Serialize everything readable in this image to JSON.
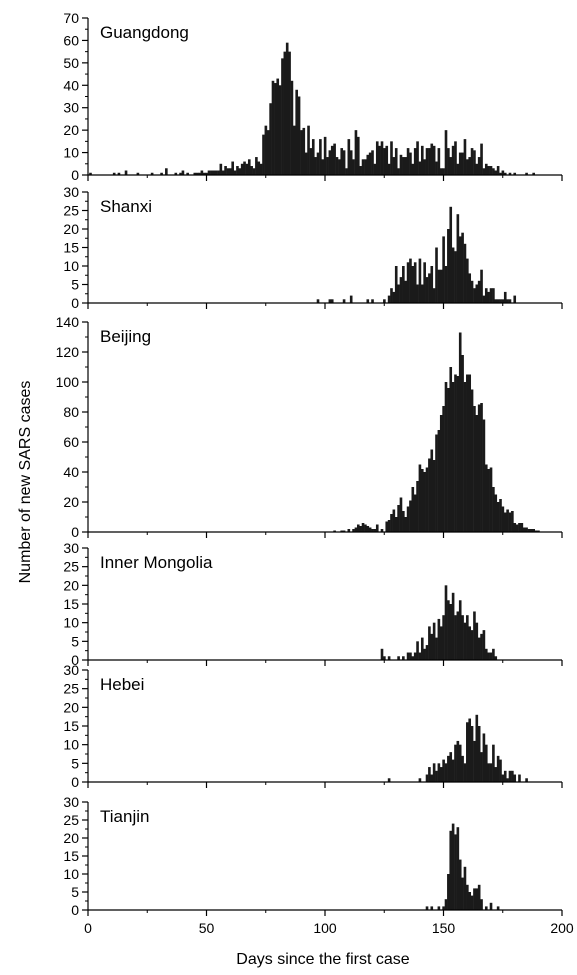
{
  "chart_data": {
    "type": "bar",
    "xlabel": "Days since the first case",
    "ylabel": "Number of new SARS cases",
    "xlim": [
      0,
      200
    ],
    "xticks": [
      0,
      50,
      100,
      150,
      200
    ],
    "bar_color": "#1a1a1a",
    "panels": [
      {
        "name": "Guangdong",
        "ylim": [
          0,
          70
        ],
        "yticks": [
          0,
          10,
          20,
          30,
          40,
          50,
          60,
          70
        ],
        "x": [
          1,
          11,
          13,
          16,
          21,
          27,
          31,
          33,
          37,
          39,
          40,
          42,
          45,
          46,
          47,
          48,
          49,
          50,
          51,
          52,
          53,
          54,
          55,
          56,
          57,
          58,
          59,
          60,
          61,
          62,
          63,
          64,
          65,
          66,
          67,
          68,
          69,
          70,
          71,
          72,
          73,
          74,
          75,
          76,
          77,
          78,
          79,
          80,
          81,
          82,
          83,
          84,
          85,
          86,
          87,
          88,
          89,
          90,
          91,
          92,
          93,
          94,
          95,
          96,
          97,
          98,
          99,
          100,
          101,
          102,
          103,
          104,
          105,
          106,
          107,
          108,
          109,
          110,
          111,
          112,
          113,
          114,
          115,
          116,
          117,
          118,
          119,
          120,
          121,
          122,
          123,
          124,
          125,
          126,
          127,
          128,
          129,
          130,
          131,
          132,
          133,
          134,
          135,
          136,
          137,
          138,
          139,
          140,
          141,
          142,
          143,
          144,
          145,
          146,
          147,
          148,
          149,
          150,
          151,
          152,
          153,
          154,
          155,
          156,
          157,
          158,
          159,
          160,
          161,
          162,
          163,
          164,
          165,
          166,
          167,
          168,
          169,
          170,
          171,
          172,
          173,
          174,
          175,
          176,
          178,
          180,
          185,
          188
        ],
        "values": [
          1,
          1,
          1,
          2,
          1,
          1,
          1,
          3,
          1,
          1,
          2,
          1,
          1,
          1,
          1,
          2,
          1,
          1,
          2,
          2,
          2,
          2,
          2,
          5,
          2,
          4,
          3,
          3,
          6,
          2,
          4,
          3,
          5,
          6,
          5,
          7,
          4,
          3,
          8,
          6,
          5,
          18,
          22,
          20,
          32,
          42,
          41,
          43,
          40,
          52,
          55,
          59,
          55,
          42,
          22,
          38,
          35,
          20,
          21,
          10,
          22,
          12,
          16,
          8,
          10,
          16,
          7,
          17,
          8,
          11,
          13,
          14,
          8,
          7,
          12,
          11,
          3,
          16,
          11,
          7,
          20,
          17,
          4,
          7,
          7,
          9,
          10,
          11,
          5,
          15,
          13,
          15,
          12,
          13,
          5,
          15,
          8,
          12,
          3,
          9,
          8,
          8,
          12,
          10,
          5,
          12,
          15,
          6,
          13,
          7,
          12,
          12,
          14,
          13,
          6,
          12,
          3,
          3,
          20,
          12,
          8,
          13,
          15,
          5,
          10,
          10,
          16,
          7,
          8,
          12,
          11,
          5,
          8,
          14,
          3,
          5,
          4,
          4,
          3,
          2,
          4,
          1,
          2,
          1,
          1,
          1,
          1,
          1
        ]
      },
      {
        "name": "Shanxi",
        "ylim": [
          0,
          30
        ],
        "yticks": [
          0,
          5,
          10,
          15,
          20,
          25,
          30
        ],
        "x": [
          97,
          102,
          103,
          108,
          111,
          118,
          120,
          125,
          127,
          128,
          129,
          130,
          131,
          132,
          133,
          134,
          135,
          136,
          137,
          138,
          139,
          140,
          141,
          142,
          143,
          144,
          145,
          146,
          147,
          148,
          149,
          150,
          151,
          152,
          153,
          154,
          155,
          156,
          157,
          158,
          159,
          160,
          161,
          162,
          163,
          164,
          165,
          166,
          167,
          168,
          169,
          170,
          171,
          172,
          173,
          174,
          175,
          176,
          177,
          178,
          180
        ],
        "values": [
          1,
          1,
          1,
          1,
          2,
          1,
          1,
          1,
          2,
          4,
          3,
          10,
          5,
          7,
          10,
          6,
          11,
          12,
          10,
          11,
          5,
          12,
          5,
          11,
          7,
          8,
          10,
          4,
          15,
          9,
          9,
          18,
          10,
          20,
          26,
          15,
          14,
          24,
          18,
          19,
          16,
          12,
          8,
          6,
          4,
          5,
          6,
          9,
          2,
          4,
          3,
          4,
          4,
          1,
          1,
          1,
          1,
          3,
          1,
          1,
          2
        ]
      },
      {
        "name": "Beijing",
        "ylim": [
          0,
          140
        ],
        "yticks": [
          0,
          20,
          40,
          60,
          80,
          100,
          120,
          140
        ],
        "x": [
          104,
          107,
          108,
          110,
          112,
          113,
          114,
          115,
          116,
          117,
          118,
          119,
          120,
          121,
          122,
          124,
          126,
          127,
          128,
          129,
          130,
          131,
          132,
          133,
          134,
          135,
          136,
          137,
          138,
          139,
          140,
          141,
          142,
          143,
          144,
          145,
          146,
          147,
          148,
          149,
          150,
          151,
          152,
          153,
          154,
          155,
          156,
          157,
          158,
          159,
          160,
          161,
          162,
          163,
          164,
          165,
          166,
          167,
          168,
          169,
          170,
          171,
          172,
          173,
          174,
          175,
          176,
          177,
          178,
          179,
          180,
          181,
          182,
          183,
          184,
          185,
          186,
          187,
          188,
          189,
          190
        ],
        "values": [
          1,
          1,
          1,
          2,
          2,
          3,
          5,
          4,
          6,
          5,
          4,
          3,
          2,
          2,
          5,
          2,
          7,
          8,
          12,
          15,
          10,
          18,
          23,
          14,
          10,
          17,
          21,
          30,
          25,
          34,
          45,
          42,
          40,
          43,
          49,
          55,
          48,
          65,
          68,
          78,
          84,
          100,
          96,
          110,
          100,
          105,
          104,
          133,
          118,
          100,
          105,
          105,
          95,
          84,
          78,
          85,
          86,
          75,
          45,
          42,
          43,
          30,
          25,
          20,
          22,
          17,
          13,
          15,
          13,
          14,
          6,
          5,
          6,
          6,
          3,
          3,
          2,
          2,
          2,
          1,
          1
        ]
      },
      {
        "name": "Inner Mongolia",
        "ylim": [
          0,
          30
        ],
        "yticks": [
          0,
          5,
          10,
          15,
          20,
          25,
          30
        ],
        "x": [
          124,
          125,
          127,
          131,
          133,
          135,
          136,
          137,
          138,
          139,
          140,
          141,
          142,
          143,
          144,
          145,
          146,
          147,
          148,
          149,
          150,
          151,
          152,
          153,
          154,
          155,
          156,
          157,
          158,
          159,
          160,
          161,
          162,
          163,
          164,
          165,
          166,
          167,
          168,
          169,
          170,
          171,
          172
        ],
        "values": [
          3,
          1,
          1,
          1,
          1,
          2,
          2,
          1,
          2,
          5,
          2,
          6,
          3,
          4,
          9,
          7,
          10,
          6,
          11,
          9,
          12,
          20,
          16,
          15,
          18,
          12,
          13,
          16,
          12,
          10,
          12,
          9,
          8,
          13,
          10,
          6,
          7,
          8,
          3,
          2,
          2,
          3,
          1
        ]
      },
      {
        "name": "Hebei",
        "ylim": [
          0,
          30
        ],
        "yticks": [
          0,
          5,
          10,
          15,
          20,
          25,
          30
        ],
        "x": [
          127,
          140,
          143,
          144,
          145,
          146,
          147,
          148,
          149,
          150,
          151,
          152,
          153,
          154,
          155,
          156,
          157,
          158,
          159,
          160,
          161,
          162,
          163,
          164,
          165,
          166,
          167,
          168,
          169,
          170,
          171,
          172,
          173,
          174,
          175,
          176,
          177,
          178,
          179,
          180,
          182,
          185
        ],
        "values": [
          1,
          1,
          2,
          4,
          2,
          5,
          3,
          5,
          4,
          6,
          5,
          7,
          8,
          6,
          10,
          11,
          10,
          7,
          5,
          16,
          17,
          15,
          11,
          18,
          15,
          8,
          13,
          10,
          5,
          5,
          10,
          4,
          7,
          6,
          2,
          3,
          1,
          3,
          3,
          2,
          2,
          1
        ]
      },
      {
        "name": "Tianjin",
        "ylim": [
          0,
          30
        ],
        "yticks": [
          0,
          5,
          10,
          15,
          20,
          25,
          30
        ],
        "x": [
          143,
          145,
          148,
          150,
          151,
          152,
          153,
          154,
          155,
          156,
          157,
          158,
          159,
          160,
          161,
          162,
          163,
          164,
          165,
          166,
          168,
          170,
          173
        ],
        "values": [
          1,
          1,
          1,
          1,
          3,
          10,
          22,
          24,
          21,
          23,
          14,
          9,
          12,
          7,
          5,
          4,
          6,
          6,
          7,
          3,
          1,
          2,
          1
        ]
      }
    ]
  }
}
